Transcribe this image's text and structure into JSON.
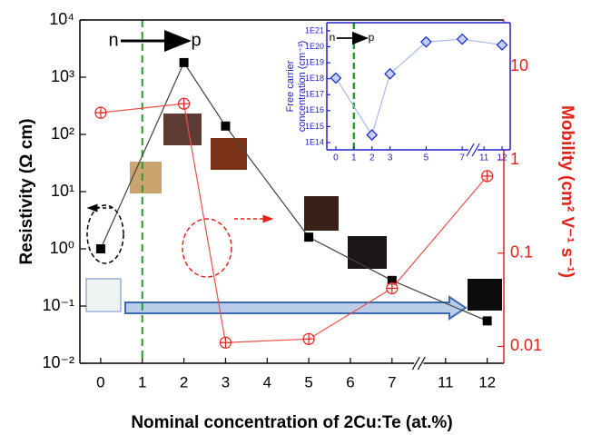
{
  "chart_data": [
    {
      "type": "line",
      "x_label": "Nominal concentration of 2Cu:Te (at.%)",
      "y_label": "Resistivity (Ω cm)",
      "y2_label": "Mobility (cm² V⁻¹ s⁻¹)",
      "annotations": [
        "n",
        "p"
      ],
      "xlim": [
        -0.5,
        12.4
      ],
      "xbreak": [
        7,
        11
      ],
      "xticks": [
        0,
        1,
        2,
        3,
        4,
        5,
        6,
        7,
        11,
        12
      ],
      "log_y": true,
      "ylim": [
        0.01,
        10000
      ],
      "yticks": [
        {
          "value": 0.01,
          "label": "10⁻²"
        },
        {
          "value": 0.1,
          "label": "10⁻¹"
        },
        {
          "value": 1,
          "label": "10⁰"
        },
        {
          "value": 10,
          "label": "10¹"
        },
        {
          "value": 100,
          "label": "10²"
        },
        {
          "value": 1000,
          "label": "10³"
        },
        {
          "value": 10000,
          "label": "10⁴"
        }
      ],
      "y2lim": [
        0.0066,
        31.6
      ],
      "y2ticks": [
        0.01,
        0.1,
        1,
        10
      ],
      "y2_color": "#e2231a",
      "vline_x": 1,
      "vline_color": "#2a9a2a",
      "series": [
        {
          "color": "#000000",
          "line_color": "#404040",
          "marker": "square",
          "x": [
            0,
            2,
            3,
            5,
            7,
            12
          ],
          "values": [
            1,
            1800,
            140,
            1.6,
            0.28,
            0.055
          ]
        },
        {
          "color": "#e2231a",
          "line_color": "#e8504a",
          "marker": "circle-plus",
          "axis": "y2",
          "x": [
            0,
            2,
            3,
            5,
            7,
            12
          ],
          "values": [
            3.2,
            4,
            0.011,
            0.012,
            0.042,
            0.67
          ]
        }
      ]
    },
    {
      "type": "line",
      "y_label": [
        "Free carrier",
        "concentration (cm⁻³)"
      ],
      "annotations": [
        "n",
        "p"
      ],
      "xlim": [
        -0.5,
        12.45
      ],
      "xbreak": [
        7,
        11
      ],
      "xticks": [
        0,
        1,
        2,
        3,
        5,
        7,
        11,
        12
      ],
      "log_y": true,
      "ylim": [
        35000000000000.0,
        3.2e+21
      ],
      "yticks": [
        {
          "value": 100000000000000.0,
          "label": "1E14"
        },
        {
          "value": 1000000000000000.0,
          "label": "1E15"
        },
        {
          "value": 1e+16,
          "label": "1E16"
        },
        {
          "value": 1e+17,
          "label": "1E17"
        },
        {
          "value": 1e+18,
          "label": "1E18"
        },
        {
          "value": 1e+19,
          "label": "1E19"
        },
        {
          "value": 1e+20,
          "label": "1E20"
        },
        {
          "value": 1e+21,
          "label": "1E21"
        }
      ],
      "axis_color": "#2020c8",
      "vline_x": 1,
      "vline_color": "#2a9a2a",
      "series": [
        {
          "color": "#2030c0",
          "line_color": "#a9b6ee",
          "marker": "diamond",
          "x": [
            0,
            2,
            3,
            5,
            7,
            12
          ],
          "values": [
            1.1e+18,
            300000000000000.0,
            2e+18,
            2e+20,
            3e+20,
            1.3e+20
          ]
        }
      ]
    }
  ]
}
